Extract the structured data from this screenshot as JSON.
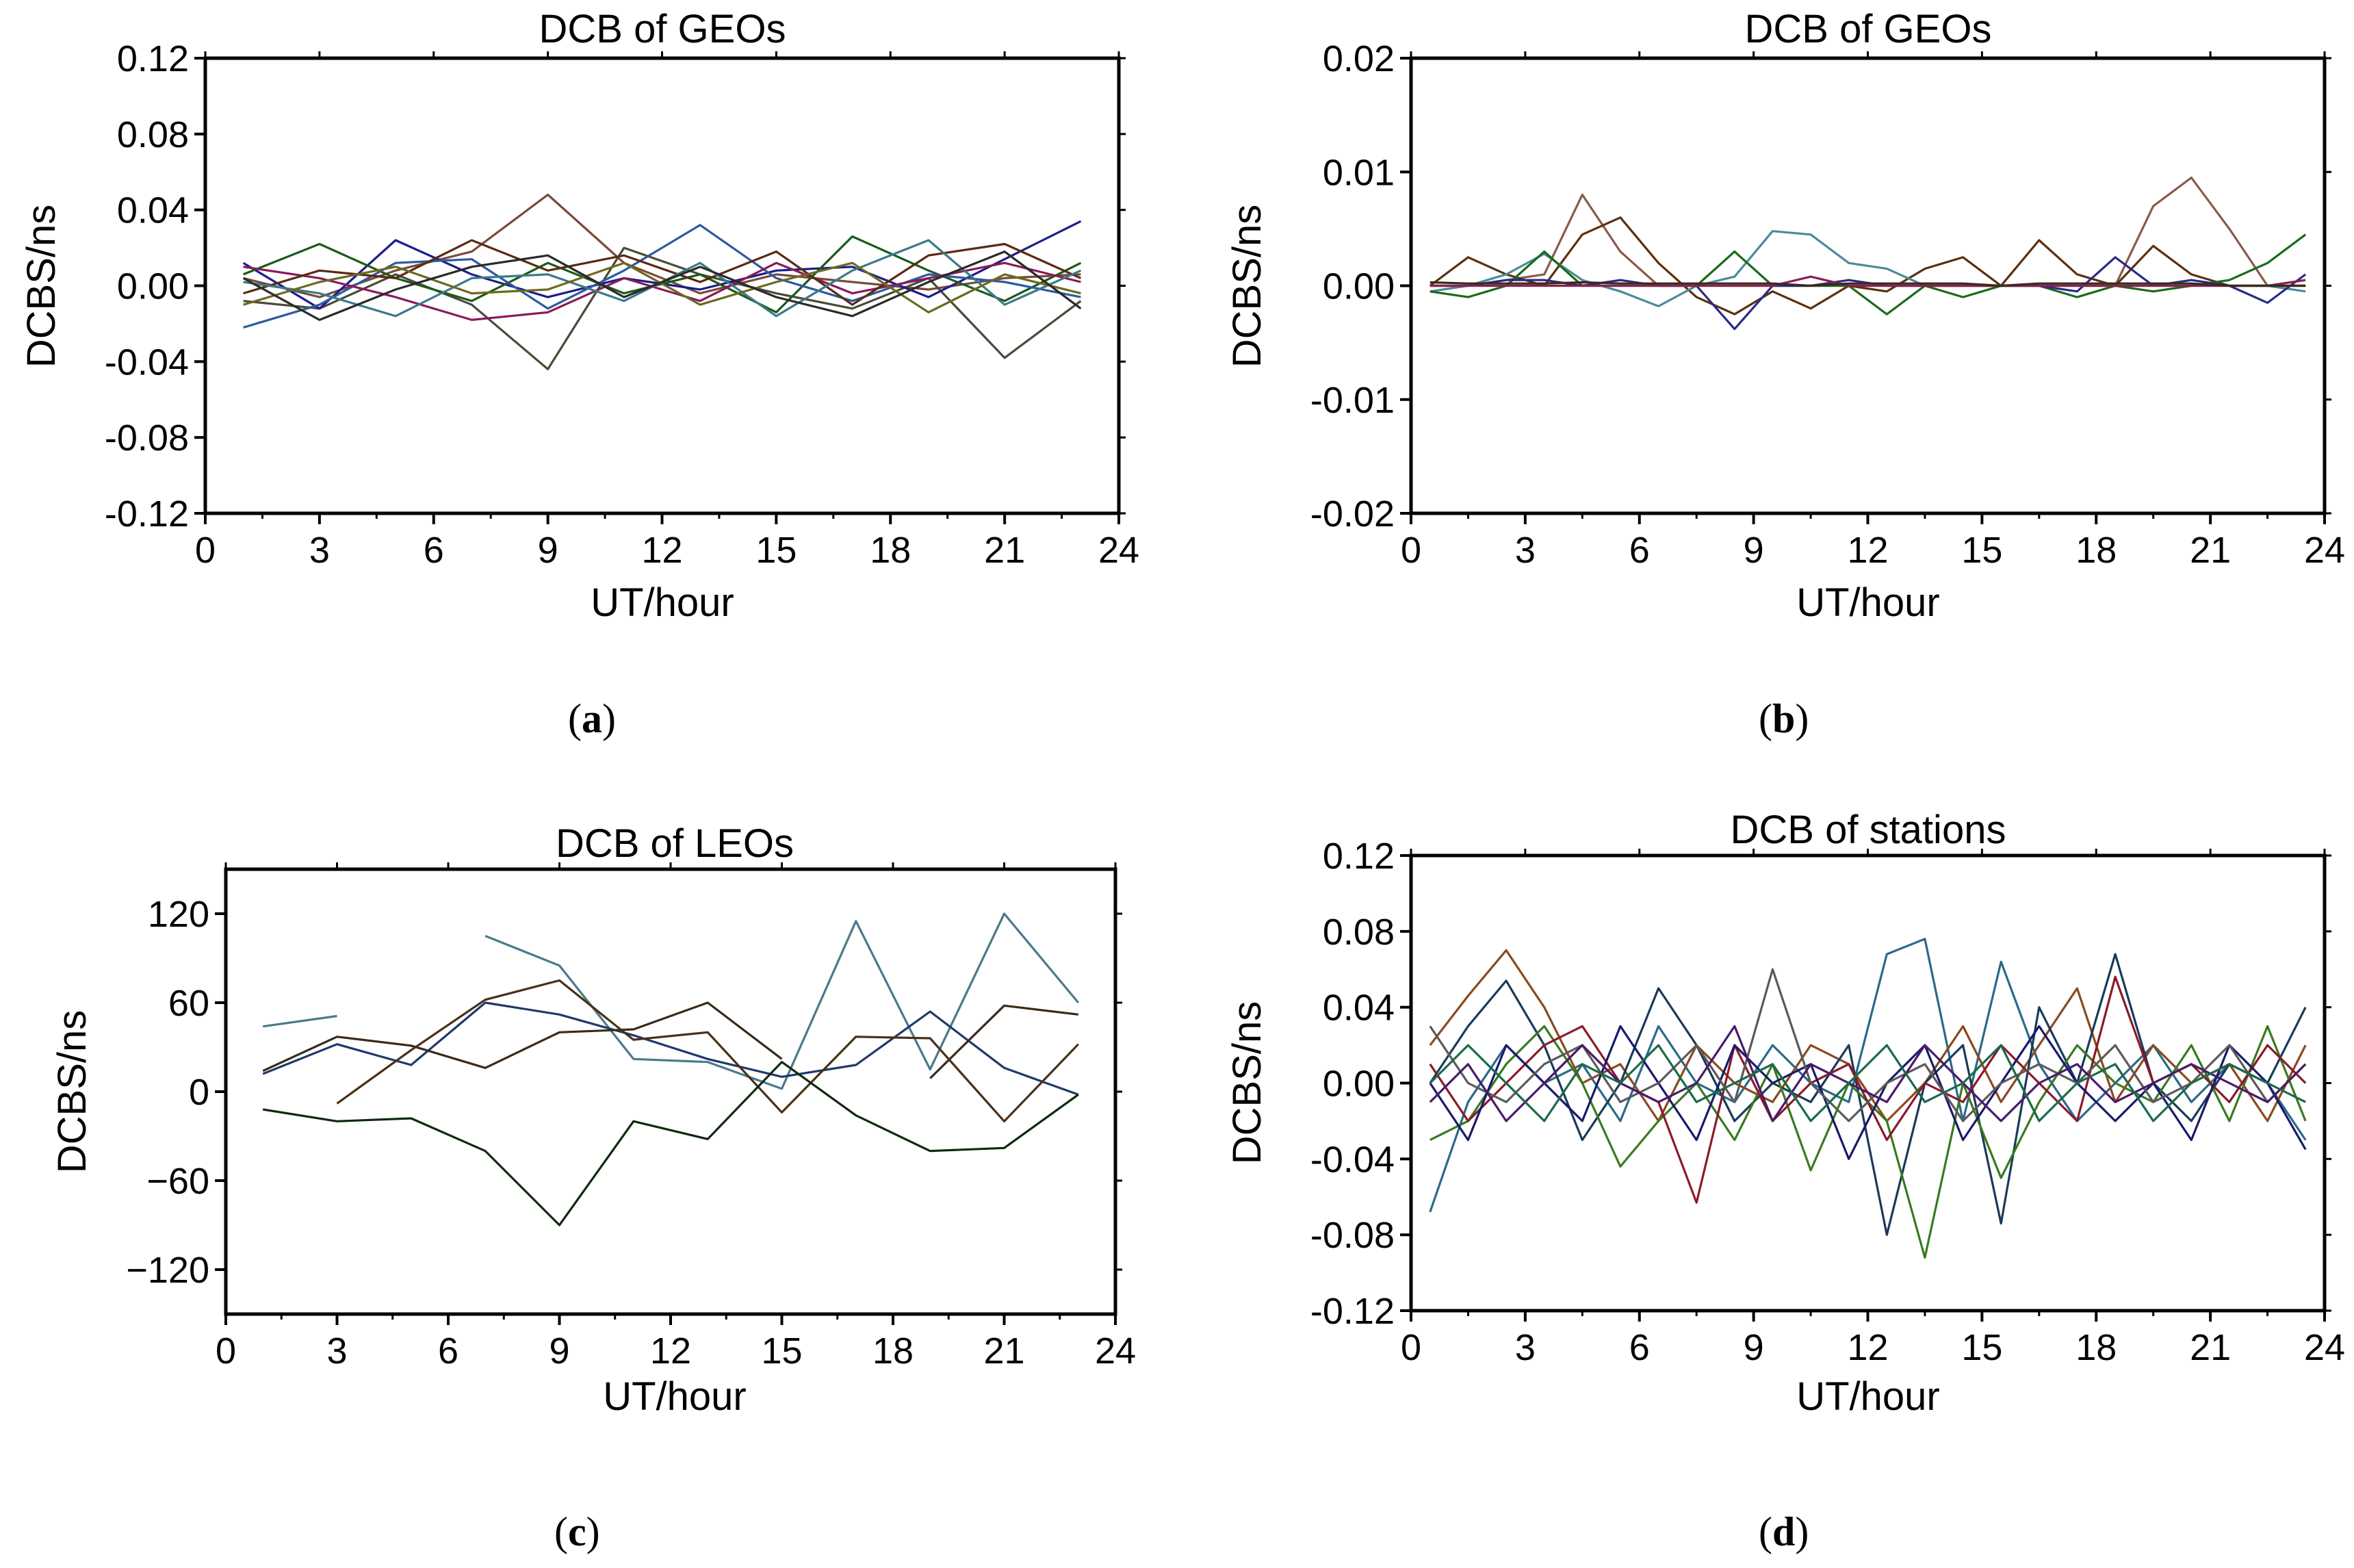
{
  "chart_data": [
    {
      "panel": "(a)",
      "type": "line",
      "title": "DCB of GEOs",
      "xlabel": "UT/hour",
      "ylabel": "DCBS/ns",
      "xlim": [
        0,
        24
      ],
      "ylim": [
        -0.12,
        0.12
      ],
      "xticks": [
        "0",
        "3",
        "6",
        "9",
        "12",
        "15",
        "18",
        "21",
        "24"
      ],
      "yticks": [
        "0.12",
        "0.08",
        "0.04",
        "0.00",
        "-0.04",
        "-0.08",
        "-0.12"
      ],
      "caption": {
        "letter": "a"
      },
      "x": [
        1,
        3,
        5,
        7,
        9,
        11,
        13,
        15,
        17,
        19,
        21,
        23
      ],
      "series": [
        {
          "color": "#7a4a3a",
          "values": [
            0.004,
            -0.006,
            0.008,
            0.018,
            0.048,
            0.012,
            -0.004,
            0.006,
            0.002,
            -0.002,
            0.004,
            0.006
          ]
        },
        {
          "color": "#4a4a3a",
          "values": [
            -0.008,
            -0.012,
            0.006,
            -0.01,
            -0.044,
            0.02,
            0.006,
            -0.004,
            -0.012,
            0.004,
            -0.038,
            -0.008
          ]
        },
        {
          "color": "#1c1c8c",
          "values": [
            0.012,
            -0.012,
            0.024,
            0.006,
            -0.006,
            0.004,
            -0.002,
            0.008,
            0.01,
            -0.006,
            0.014,
            0.034
          ]
        },
        {
          "color": "#1a5a1a",
          "values": [
            0.006,
            0.022,
            0.004,
            -0.008,
            0.012,
            -0.004,
            0.006,
            -0.014,
            0.026,
            0.008,
            -0.008,
            0.012
          ]
        },
        {
          "color": "#2c5aa0",
          "values": [
            -0.022,
            -0.01,
            0.012,
            0.014,
            -0.012,
            0.008,
            0.032,
            0.004,
            -0.008,
            0.006,
            0.002,
            -0.006
          ]
        },
        {
          "color": "#8a1a5a",
          "values": [
            0.01,
            0.004,
            -0.006,
            -0.018,
            -0.014,
            0.004,
            -0.008,
            0.012,
            -0.004,
            0.004,
            0.012,
            0.002
          ]
        },
        {
          "color": "#5a2a10",
          "values": [
            -0.004,
            0.008,
            0.004,
            0.024,
            0.008,
            0.016,
            0.002,
            0.018,
            -0.01,
            0.016,
            0.022,
            0.004
          ]
        },
        {
          "color": "#3a7a8a",
          "values": [
            0.002,
            -0.004,
            -0.016,
            0.004,
            0.006,
            -0.008,
            0.012,
            -0.016,
            0.008,
            0.024,
            -0.01,
            0.008
          ]
        },
        {
          "color": "#6a6a20",
          "values": [
            -0.01,
            0.002,
            0.01,
            -0.004,
            -0.002,
            0.012,
            -0.01,
            0.002,
            0.012,
            -0.014,
            0.006,
            -0.004
          ]
        },
        {
          "color": "#2a2a2a",
          "values": [
            0.004,
            -0.018,
            -0.002,
            0.01,
            0.016,
            -0.006,
            0.01,
            -0.006,
            -0.016,
            0.002,
            0.018,
            -0.012
          ]
        }
      ]
    },
    {
      "panel": "(b)",
      "type": "line",
      "title": "DCB of GEOs",
      "xlabel": "UT/hour",
      "ylabel": "DCBS/ns",
      "xlim": [
        0,
        24
      ],
      "ylim": [
        -0.02,
        0.02
      ],
      "xticks": [
        "0",
        "3",
        "6",
        "9",
        "12",
        "15",
        "18",
        "21",
        "24"
      ],
      "yticks": [
        "0.02",
        "0.01",
        "0.00",
        "-0.01",
        "-0.02"
      ],
      "caption": {
        "letter": "b"
      },
      "x": [
        0.5,
        1.5,
        2.5,
        3.5,
        4.5,
        5.5,
        6.5,
        7.5,
        8.5,
        9.5,
        10.5,
        11.5,
        12.5,
        13.5,
        14.5,
        15.5,
        16.5,
        17.5,
        18.5,
        19.5,
        20.5,
        21.5,
        22.5,
        23.5
      ],
      "series": [
        {
          "color": "#8a5a4a",
          "values": [
            0.0,
            0.0,
            0.0005,
            0.001,
            0.008,
            0.003,
            0.0,
            0.0,
            0.0,
            0.0,
            0.0,
            0.0,
            0.0,
            0.0,
            0.0,
            0.0,
            0.0,
            0.0,
            0.0,
            0.007,
            0.0095,
            0.005,
            0.0,
            0.0
          ]
        },
        {
          "color": "#5a3010",
          "values": [
            0.0,
            0.0025,
            0.001,
            0.0,
            0.0045,
            0.006,
            0.002,
            -0.001,
            -0.0025,
            -0.0005,
            -0.002,
            0.0,
            -0.0005,
            0.0015,
            0.0025,
            0.0,
            0.004,
            0.001,
            0.0,
            0.0035,
            0.001,
            0.0,
            0.0,
            0.0
          ]
        },
        {
          "color": "#4a8a9a",
          "values": [
            -0.0005,
            0.0,
            0.001,
            0.0028,
            0.0005,
            -0.0005,
            -0.0018,
            0.0,
            0.0008,
            0.0048,
            0.0045,
            0.002,
            0.0015,
            0.0,
            0.0,
            0.0,
            0.0,
            0.0,
            0.0,
            0.0,
            0.0,
            0.0,
            0.0,
            -0.0005
          ]
        },
        {
          "color": "#1a6a1a",
          "values": [
            -0.0005,
            -0.001,
            0.0,
            0.003,
            0.0,
            0.0,
            0.0,
            0.0,
            0.003,
            0.0,
            0.0,
            0.0,
            -0.0025,
            0.0,
            -0.001,
            0.0,
            0.0,
            -0.001,
            0.0,
            -0.0005,
            0.0,
            0.0005,
            0.002,
            0.0045
          ]
        },
        {
          "color": "#2a2a8a",
          "values": [
            0.0,
            0.0,
            0.0005,
            0.0005,
            0.0,
            0.0005,
            0.0,
            0.0,
            -0.0038,
            0.0,
            0.0,
            0.0005,
            0.0,
            0.0,
            0.0,
            0.0,
            0.0,
            -0.0005,
            0.0025,
            0.0,
            0.0005,
            0.0,
            -0.0015,
            0.001
          ]
        },
        {
          "color": "#8a2050",
          "values": [
            0.0,
            0.0,
            0.0,
            0.0,
            0.0,
            0.0,
            0.0,
            0.0,
            0.0,
            0.0,
            0.0008,
            0.0,
            0.0,
            0.0,
            0.0,
            0.0,
            0.0,
            0.0,
            0.0,
            0.0,
            0.0,
            0.0,
            0.0,
            0.0005
          ]
        },
        {
          "color": "#3a2a1a",
          "values": [
            0.0003,
            0.0002,
            0.0002,
            0.0002,
            0.0003,
            0.0002,
            0.0002,
            0.0002,
            0.0002,
            0.0002,
            0.0,
            0.0002,
            0.0002,
            0.0002,
            0.0002,
            0.0,
            0.0002,
            0.0002,
            0.0002,
            0.0002,
            0.0002,
            0.0,
            0.0,
            0.0
          ]
        }
      ]
    },
    {
      "panel": "(c)",
      "type": "line",
      "title": "DCB of LEOs",
      "xlabel": "UT/hour",
      "ylabel": "DCBS/ns",
      "xlim": [
        0,
        24
      ],
      "ylim": [
        -150,
        150
      ],
      "xticks": [
        "0",
        "3",
        "6",
        "9",
        "12",
        "15",
        "18",
        "21",
        "24"
      ],
      "yticks": [
        "120",
        "60",
        "0",
        "−60",
        "−120"
      ],
      "caption": {
        "letter": "c"
      },
      "x": [
        1,
        3,
        5,
        7,
        9,
        11,
        13,
        15,
        17,
        19,
        21,
        23
      ],
      "series": [
        {
          "color": "#4a7a8a",
          "values": [
            44,
            51,
            null,
            105,
            85,
            22,
            20,
            2,
            115,
            15,
            120,
            60
          ]
        },
        {
          "color": "#1f3a6a",
          "values": [
            12,
            32,
            18,
            60,
            52,
            38,
            22,
            10,
            18,
            54,
            16,
            -2
          ]
        },
        {
          "color": "#3a2a1a",
          "values": [
            14,
            37,
            31,
            16,
            40,
            42,
            60,
            22,
            null,
            9,
            58,
            52
          ]
        },
        {
          "color": "#4a3018",
          "values": [
            null,
            -8,
            28,
            62,
            75,
            35,
            40,
            -14,
            37,
            36,
            -20,
            32
          ]
        },
        {
          "color": "#0f2a0f",
          "values": [
            -12,
            -20,
            -18,
            -40,
            -90,
            -20,
            -32,
            20,
            -16,
            -40,
            -38,
            -2
          ]
        }
      ]
    },
    {
      "panel": "(d)",
      "type": "line",
      "title": "DCB of stations",
      "xlabel": "UT/hour",
      "ylabel": "DCBS/ns",
      "xlim": [
        0,
        24
      ],
      "ylim": [
        -0.12,
        0.12
      ],
      "xticks": [
        "0",
        "3",
        "6",
        "9",
        "12",
        "15",
        "18",
        "21",
        "24"
      ],
      "yticks": [
        "0.12",
        "0.08",
        "0.04",
        "0.00",
        "-0.04",
        "-0.08",
        "-0.12"
      ],
      "caption": {
        "letter": "d"
      },
      "x": [
        0.5,
        1.5,
        2.5,
        3.5,
        4.5,
        5.5,
        6.5,
        7.5,
        8.5,
        9.5,
        10.5,
        11.5,
        12.5,
        13.5,
        14.5,
        15.5,
        16.5,
        17.5,
        18.5,
        19.5,
        20.5,
        21.5,
        22.5,
        23.5
      ],
      "series": [
        {
          "color": "#2a6a8a",
          "values": [
            -0.068,
            -0.01,
            0.02,
            0.0,
            0.01,
            -0.02,
            0.03,
            0.0,
            -0.01,
            0.02,
            0.0,
            -0.01,
            0.068,
            0.076,
            -0.02,
            0.064,
            0.01,
            -0.02,
            0.0,
            0.02,
            -0.01,
            0.01,
            0.0,
            -0.03
          ]
        },
        {
          "color": "#8a4a20",
          "values": [
            0.02,
            0.046,
            0.07,
            0.04,
            0.0,
            0.01,
            -0.02,
            0.02,
            0.0,
            -0.01,
            0.02,
            0.01,
            -0.02,
            0.0,
            0.03,
            -0.01,
            0.02,
            0.05,
            -0.01,
            0.02,
            0.0,
            0.01,
            -0.02,
            0.02
          ]
        },
        {
          "color": "#1a3a5a",
          "values": [
            0.0,
            0.03,
            0.054,
            0.02,
            -0.03,
            0.0,
            0.05,
            0.02,
            -0.02,
            0.0,
            -0.01,
            0.02,
            -0.08,
            0.0,
            0.02,
            -0.074,
            0.04,
            0.0,
            0.068,
            0.0,
            -0.02,
            0.01,
            0.0,
            0.04
          ]
        },
        {
          "color": "#3a7a20",
          "values": [
            -0.03,
            -0.02,
            0.01,
            0.03,
            0.0,
            -0.044,
            -0.02,
            0.0,
            -0.03,
            0.01,
            -0.046,
            0.0,
            -0.02,
            -0.092,
            0.0,
            -0.05,
            -0.01,
            0.02,
            0.0,
            -0.01,
            0.02,
            -0.02,
            0.03,
            -0.02
          ]
        },
        {
          "color": "#8a1a2a",
          "values": [
            0.01,
            -0.02,
            0.0,
            0.02,
            0.03,
            0.0,
            -0.01,
            -0.063,
            0.02,
            -0.02,
            0.0,
            0.01,
            -0.03,
            0.0,
            -0.01,
            0.02,
            0.0,
            -0.02,
            0.056,
            0.0,
            0.01,
            -0.01,
            0.02,
            0.0
          ]
        },
        {
          "color": "#1a1a6a",
          "values": [
            0.0,
            -0.03,
            0.02,
            0.0,
            -0.02,
            0.03,
            0.0,
            -0.03,
            0.02,
            0.0,
            0.01,
            -0.04,
            0.0,
            0.02,
            -0.03,
            0.0,
            0.03,
            0.0,
            -0.02,
            0.0,
            -0.03,
            0.02,
            0.0,
            -0.035
          ]
        },
        {
          "color": "#5a5a5a",
          "values": [
            0.03,
            0.0,
            -0.01,
            0.01,
            0.02,
            -0.01,
            0.0,
            0.02,
            -0.01,
            0.06,
            0.0,
            -0.02,
            0.0,
            0.01,
            -0.02,
            0.0,
            0.01,
            0.0,
            0.02,
            -0.01,
            0.0,
            0.02,
            -0.01,
            0.01
          ]
        },
        {
          "color": "#4a1a6a",
          "values": [
            -0.01,
            0.01,
            -0.02,
            0.0,
            0.02,
            0.0,
            -0.01,
            0.0,
            0.03,
            -0.02,
            0.01,
            0.0,
            -0.01,
            0.02,
            0.0,
            -0.02,
            0.0,
            0.01,
            -0.01,
            0.0,
            0.01,
            0.0,
            -0.01,
            0.01
          ]
        },
        {
          "color": "#1a6a4a",
          "values": [
            0.0,
            0.02,
            0.0,
            -0.02,
            0.01,
            0.0,
            0.02,
            -0.01,
            0.0,
            0.01,
            -0.02,
            0.0,
            0.02,
            -0.01,
            0.0,
            0.02,
            -0.02,
            0.0,
            0.01,
            -0.02,
            0.0,
            0.01,
            0.0,
            -0.01
          ]
        }
      ]
    }
  ]
}
